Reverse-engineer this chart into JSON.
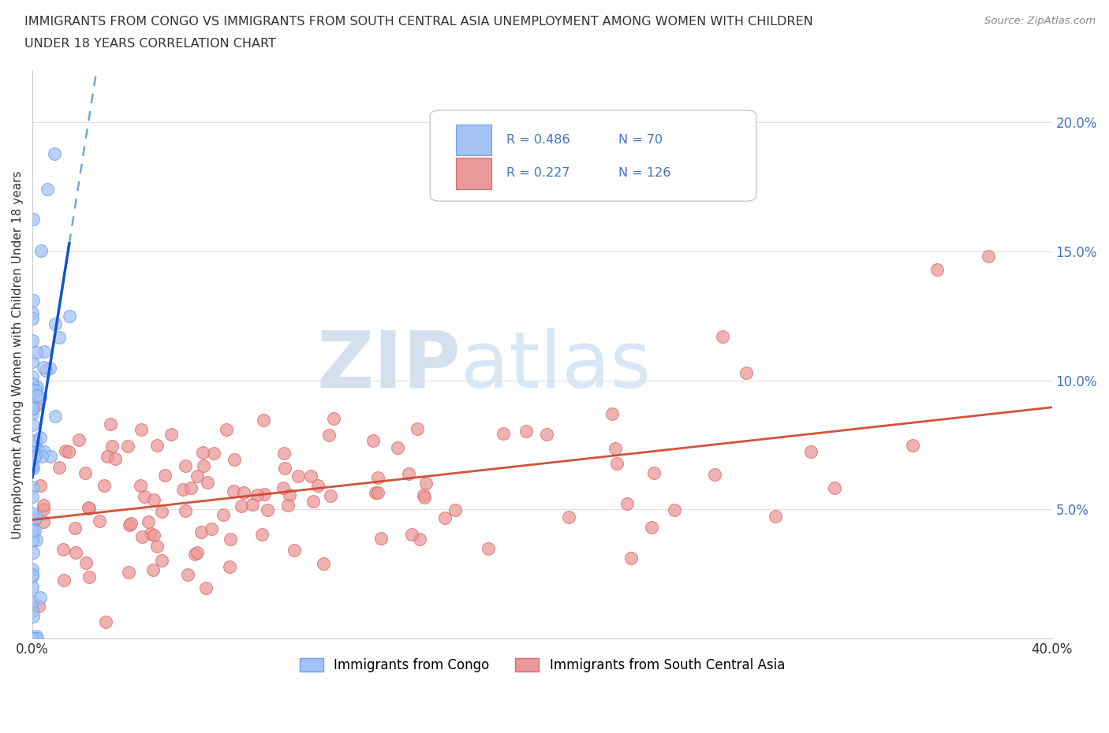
{
  "title_line1": "IMMIGRANTS FROM CONGO VS IMMIGRANTS FROM SOUTH CENTRAL ASIA UNEMPLOYMENT AMONG WOMEN WITH CHILDREN",
  "title_line2": "UNDER 18 YEARS CORRELATION CHART",
  "source": "Source: ZipAtlas.com",
  "ylabel": "Unemployment Among Women with Children Under 18 years",
  "xlim": [
    0.0,
    0.4
  ],
  "ylim": [
    0.0,
    0.22
  ],
  "congo_color": "#a4c2f4",
  "congo_edge": "#6d9eeb",
  "sca_color": "#ea9999",
  "sca_edge": "#e06666",
  "congo_line_solid": "#1155cc",
  "congo_line_dash": "#6fa8dc",
  "sca_line": "#cc4125",
  "congo_R": 0.486,
  "congo_N": 70,
  "sca_R": 0.227,
  "sca_N": 126,
  "legend_label_congo": "Immigrants from Congo",
  "legend_label_sca": "Immigrants from South Central Asia",
  "watermark_zip": "ZIP",
  "watermark_atlas": "atlas",
  "background_color": "#ffffff",
  "grid_color": "#e0e0e0",
  "tick_color": "#4472c4",
  "ylabel_color": "#333333",
  "title_color": "#333333",
  "source_color": "#888888"
}
